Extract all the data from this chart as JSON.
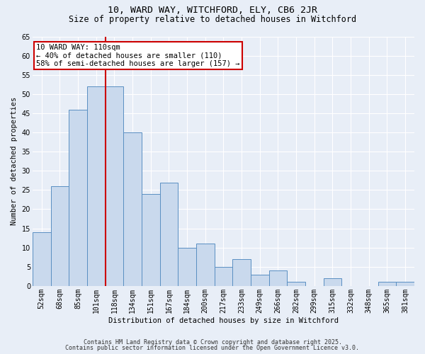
{
  "title_line1": "10, WARD WAY, WITCHFORD, ELY, CB6 2JR",
  "title_line2": "Size of property relative to detached houses in Witchford",
  "xlabel": "Distribution of detached houses by size in Witchford",
  "ylabel": "Number of detached properties",
  "categories": [
    "52sqm",
    "68sqm",
    "85sqm",
    "101sqm",
    "118sqm",
    "134sqm",
    "151sqm",
    "167sqm",
    "184sqm",
    "200sqm",
    "217sqm",
    "233sqm",
    "249sqm",
    "266sqm",
    "282sqm",
    "299sqm",
    "315sqm",
    "332sqm",
    "348sqm",
    "365sqm",
    "381sqm"
  ],
  "values": [
    14,
    26,
    46,
    52,
    52,
    40,
    24,
    27,
    10,
    11,
    5,
    7,
    3,
    4,
    1,
    0,
    2,
    0,
    0,
    1,
    1
  ],
  "bar_color": "#c9d9ed",
  "bar_edge_color": "#5a8fc2",
  "red_line_x": 3.5,
  "annotation_text": "10 WARD WAY: 110sqm\n← 40% of detached houses are smaller (110)\n58% of semi-detached houses are larger (157) →",
  "annotation_box_color": "#ffffff",
  "annotation_box_edge_color": "#cc0000",
  "red_line_color": "#cc0000",
  "background_color": "#e8eef7",
  "grid_color": "#ffffff",
  "ylim": [
    0,
    65
  ],
  "yticks": [
    0,
    5,
    10,
    15,
    20,
    25,
    30,
    35,
    40,
    45,
    50,
    55,
    60,
    65
  ],
  "footnote1": "Contains HM Land Registry data © Crown copyright and database right 2025.",
  "footnote2": "Contains public sector information licensed under the Open Government Licence v3.0.",
  "title1_fontsize": 9.5,
  "title2_fontsize": 8.5,
  "label_fontsize": 7.5,
  "tick_fontsize": 7.0,
  "annot_fontsize": 7.5,
  "footnote_fontsize": 6.0
}
